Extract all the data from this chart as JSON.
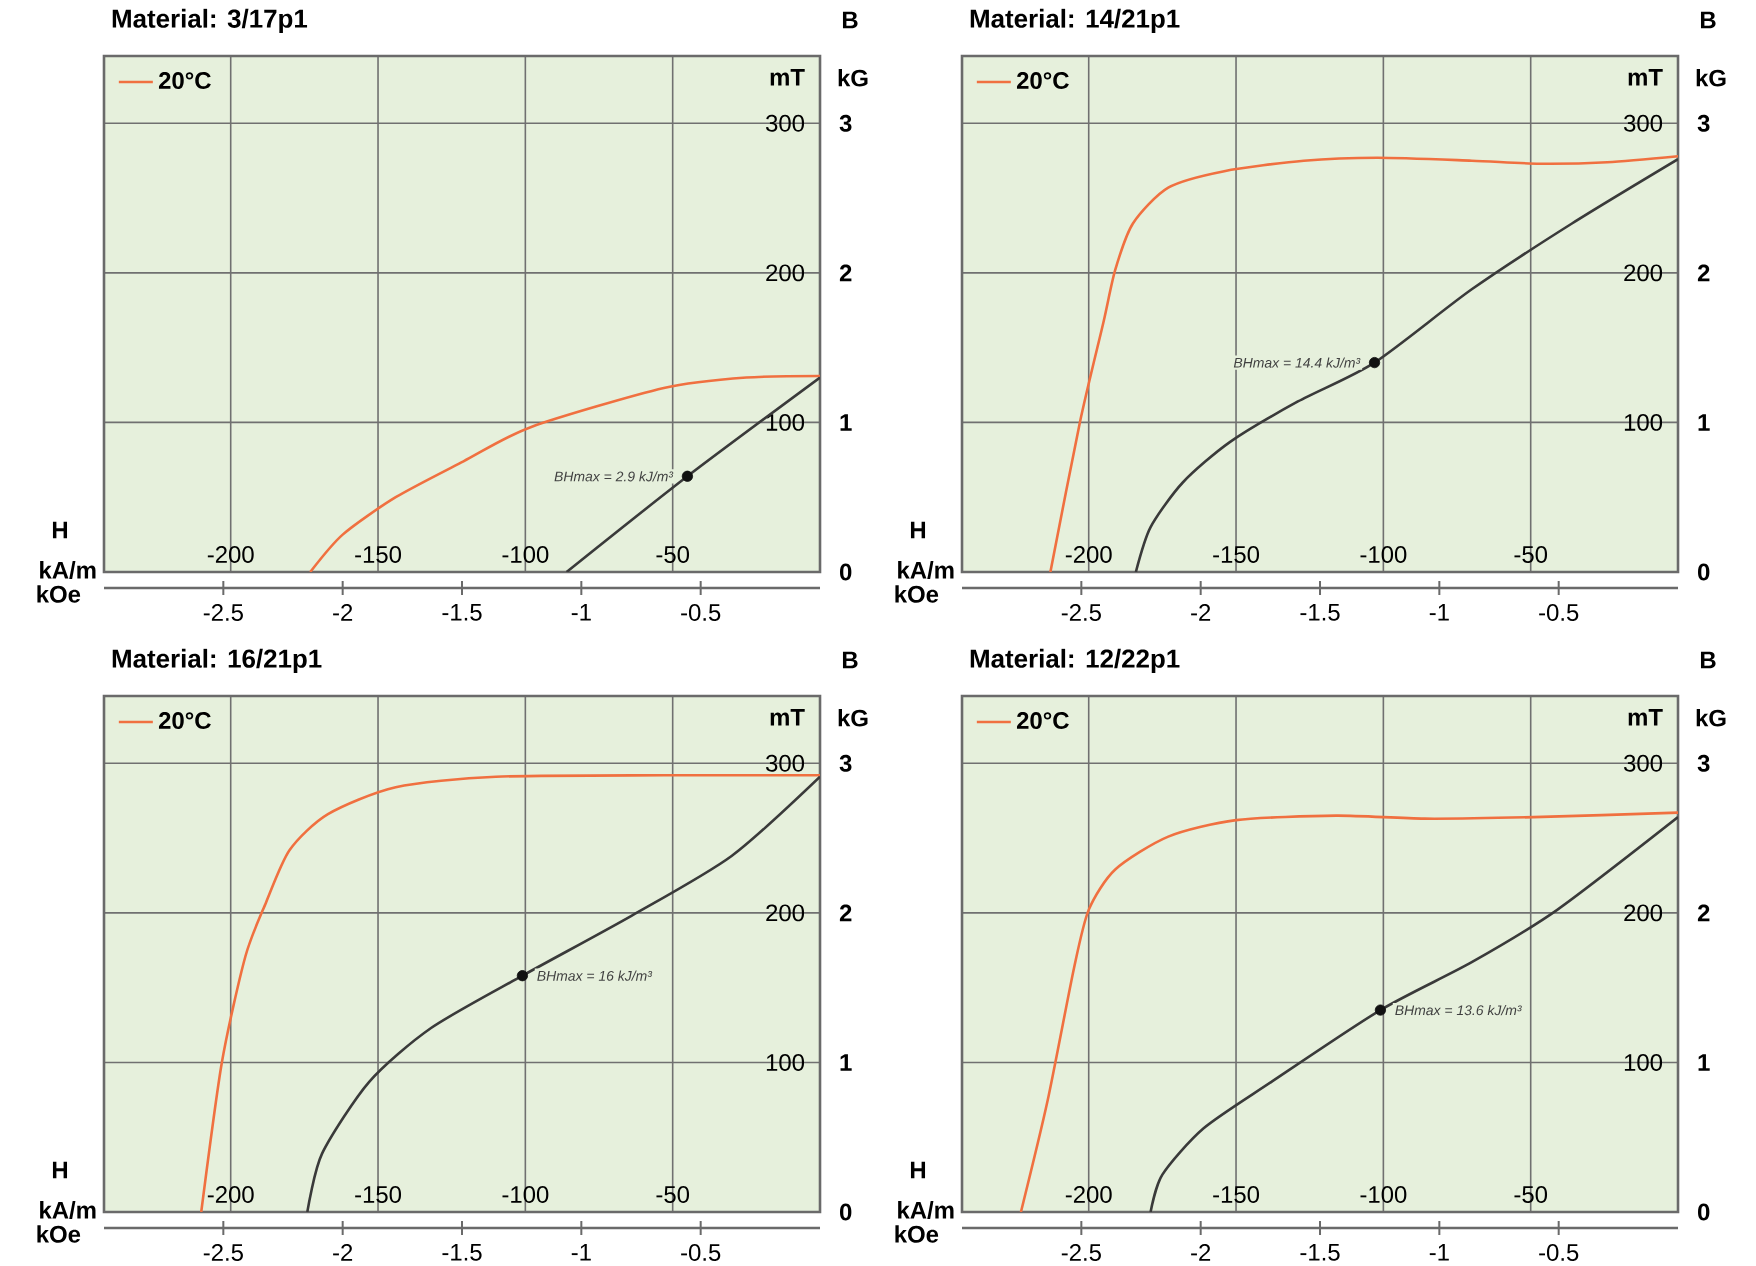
{
  "chart_data": [
    {
      "type": "line",
      "title": "Material: 3/17p1",
      "xlabel": "kA/m",
      "x2label": "kOe",
      "ylabel": "mT",
      "y2label": "kG",
      "xlim": [
        -243,
        0
      ],
      "xticks": [
        -200,
        -150,
        -100,
        -50
      ],
      "x2lim": [
        -3.0,
        0
      ],
      "x2ticks": [
        -2.5,
        -2,
        -1.5,
        -1,
        -0.5
      ],
      "ylim": [
        0,
        345
      ],
      "yticks": [
        100,
        200,
        300
      ],
      "y2lim": [
        0,
        3.45
      ],
      "y2ticks": [
        0,
        1,
        2,
        3
      ],
      "grid": true,
      "legend": "top left",
      "annotations": [
        "H",
        "B",
        {
          "text": "BHmax = 2.9 kJ/m³",
          "x": -45,
          "y": 64
        }
      ],
      "series": [
        {
          "name": "20°C",
          "color": "#f07040",
          "x": [
            -173,
            -162,
            -144,
            -121,
            -98,
            -53,
            -25,
            0
          ],
          "values": [
            0,
            25,
            50,
            74,
            97,
            123,
            130,
            131
          ]
        },
        {
          "color": "#3a3a3a",
          "x": [
            -86,
            -45,
            0
          ],
          "values": [
            0,
            64,
            130
          ]
        },
        {
          "type": "scatter",
          "color": "#111111",
          "x": [
            -45
          ],
          "values": [
            64
          ]
        }
      ]
    },
    {
      "type": "line",
      "title": "Material: 14/21p1",
      "xlabel": "kA/m",
      "x2label": "kOe",
      "ylabel": "mT",
      "y2label": "kG",
      "xlim": [
        -243,
        0
      ],
      "xticks": [
        -200,
        -150,
        -100,
        -50
      ],
      "x2lim": [
        -3.0,
        0
      ],
      "x2ticks": [
        -2.5,
        -2,
        -1.5,
        -1,
        -0.5
      ],
      "ylim": [
        0,
        345
      ],
      "yticks": [
        100,
        200,
        300
      ],
      "y2lim": [
        0,
        3.45
      ],
      "y2ticks": [
        0,
        1,
        2,
        3
      ],
      "grid": true,
      "legend": "top left",
      "annotations": [
        "H",
        "B",
        {
          "text": "BHmax = 14.4 kJ/m³",
          "x": -103,
          "y": 140
        }
      ],
      "series": [
        {
          "name": "20°C",
          "color": "#f07040",
          "x": [
            -213,
            -203,
            -195,
            -191,
            -185,
            -173,
            -154,
            -127,
            -102,
            -70,
            -47,
            -24,
            0
          ],
          "values": [
            0,
            100,
            167,
            202,
            233,
            257,
            268,
            275,
            277,
            275,
            273,
            274,
            278
          ]
        },
        {
          "color": "#3a3a3a",
          "x": [
            -184,
            -179,
            -168,
            -152,
            -129,
            -103,
            -70,
            -36,
            0
          ],
          "values": [
            0,
            30,
            60,
            87,
            114,
            140,
            189,
            233,
            276
          ]
        },
        {
          "type": "scatter",
          "color": "#111111",
          "x": [
            -103
          ],
          "values": [
            140
          ]
        }
      ]
    },
    {
      "type": "line",
      "title": "Material: 16/21p1",
      "xlabel": "kA/m",
      "x2label": "kOe",
      "ylabel": "mT",
      "y2label": "kG",
      "xlim": [
        -243,
        0
      ],
      "xticks": [
        -200,
        -150,
        -100,
        -50
      ],
      "x2lim": [
        -3.0,
        0
      ],
      "x2ticks": [
        -2.5,
        -2,
        -1.5,
        -1,
        -0.5
      ],
      "ylim": [
        0,
        345
      ],
      "yticks": [
        100,
        200,
        300
      ],
      "y2lim": [
        0,
        3.45
      ],
      "y2ticks": [
        0,
        1,
        2,
        3
      ],
      "grid": true,
      "legend": "top left",
      "annotations": [
        "H",
        "B",
        {
          "text": "BHmax = 16 kJ/m³",
          "x": -101,
          "y": 158
        }
      ],
      "series": [
        {
          "name": "20°C",
          "color": "#f07040",
          "x": [
            -210,
            -203,
            -195,
            -188,
            -180,
            -167,
            -144,
            -110,
            -53,
            0
          ],
          "values": [
            0,
            100,
            171,
            207,
            242,
            266,
            284,
            291,
            292,
            292
          ]
        },
        {
          "color": "#3a3a3a",
          "x": [
            -174,
            -169,
            -153,
            -132,
            -101,
            -64,
            -30,
            0
          ],
          "values": [
            0,
            39,
            87,
            123,
            158,
            198,
            238,
            291
          ]
        },
        {
          "type": "scatter",
          "color": "#111111",
          "x": [
            -101
          ],
          "values": [
            158
          ]
        }
      ]
    },
    {
      "type": "line",
      "title": "Material: 12/22p1",
      "xlabel": "kA/m",
      "x2label": "kOe",
      "ylabel": "mT",
      "y2label": "kG",
      "xlim": [
        -243,
        0
      ],
      "xticks": [
        -200,
        -150,
        -100,
        -50
      ],
      "x2lim": [
        -3.0,
        0
      ],
      "x2ticks": [
        -2.5,
        -2,
        -1.5,
        -1,
        -0.5
      ],
      "ylim": [
        0,
        345
      ],
      "yticks": [
        100,
        200,
        300
      ],
      "y2lim": [
        0,
        3.45
      ],
      "y2ticks": [
        0,
        1,
        2,
        3
      ],
      "grid": true,
      "legend": "top left",
      "annotations": [
        "H",
        "B",
        {
          "text": "BHmax = 13.6 kJ/m³",
          "x": -101,
          "y": 135
        }
      ],
      "series": [
        {
          "name": "20°C",
          "color": "#f07040",
          "x": [
            -223,
            -214,
            -205,
            -200,
            -191,
            -173,
            -150,
            -116,
            -86,
            -49,
            0
          ],
          "values": [
            0,
            74,
            163,
            202,
            229,
            251,
            262,
            265,
            263,
            264,
            267
          ]
        },
        {
          "color": "#3a3a3a",
          "x": [
            -179,
            -175,
            -161,
            -138,
            -101,
            -70,
            -41,
            0
          ],
          "values": [
            0,
            25,
            56,
            87,
            135,
            167,
            202,
            264
          ]
        },
        {
          "type": "scatter",
          "color": "#111111",
          "x": [
            -101
          ],
          "values": [
            135
          ]
        }
      ]
    }
  ]
}
